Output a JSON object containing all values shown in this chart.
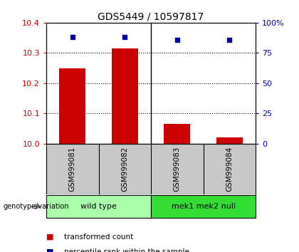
{
  "title": "GDS5449 / 10597817",
  "samples": [
    "GSM999081",
    "GSM999082",
    "GSM999083",
    "GSM999084"
  ],
  "red_values": [
    10.25,
    10.315,
    10.065,
    10.02
  ],
  "blue_values": [
    88,
    88,
    86,
    86
  ],
  "ylim_left": [
    10.0,
    10.4
  ],
  "ylim_right": [
    0,
    100
  ],
  "yticks_left": [
    10.0,
    10.1,
    10.2,
    10.3,
    10.4
  ],
  "yticks_right": [
    0,
    25,
    50,
    75,
    100
  ],
  "ytick_labels_right": [
    "0",
    "25",
    "50",
    "75",
    "100%"
  ],
  "groups": [
    {
      "label": "wild type",
      "indices": [
        0,
        1
      ],
      "color": "#AAFFAA"
    },
    {
      "label": "mek1 mek2 null",
      "indices": [
        2,
        3
      ],
      "color": "#33DD33"
    }
  ],
  "red_color": "#CC0000",
  "blue_color": "#000099",
  "bar_width": 0.5,
  "group_label": "genotype/variation",
  "legend_red": "transformed count",
  "legend_blue": "percentile rank within the sample",
  "sample_box_color": "#C8C8C8",
  "background_color": "#FFFFFF",
  "title_fontsize": 10,
  "tick_fontsize": 8,
  "legend_fontsize": 7.5
}
